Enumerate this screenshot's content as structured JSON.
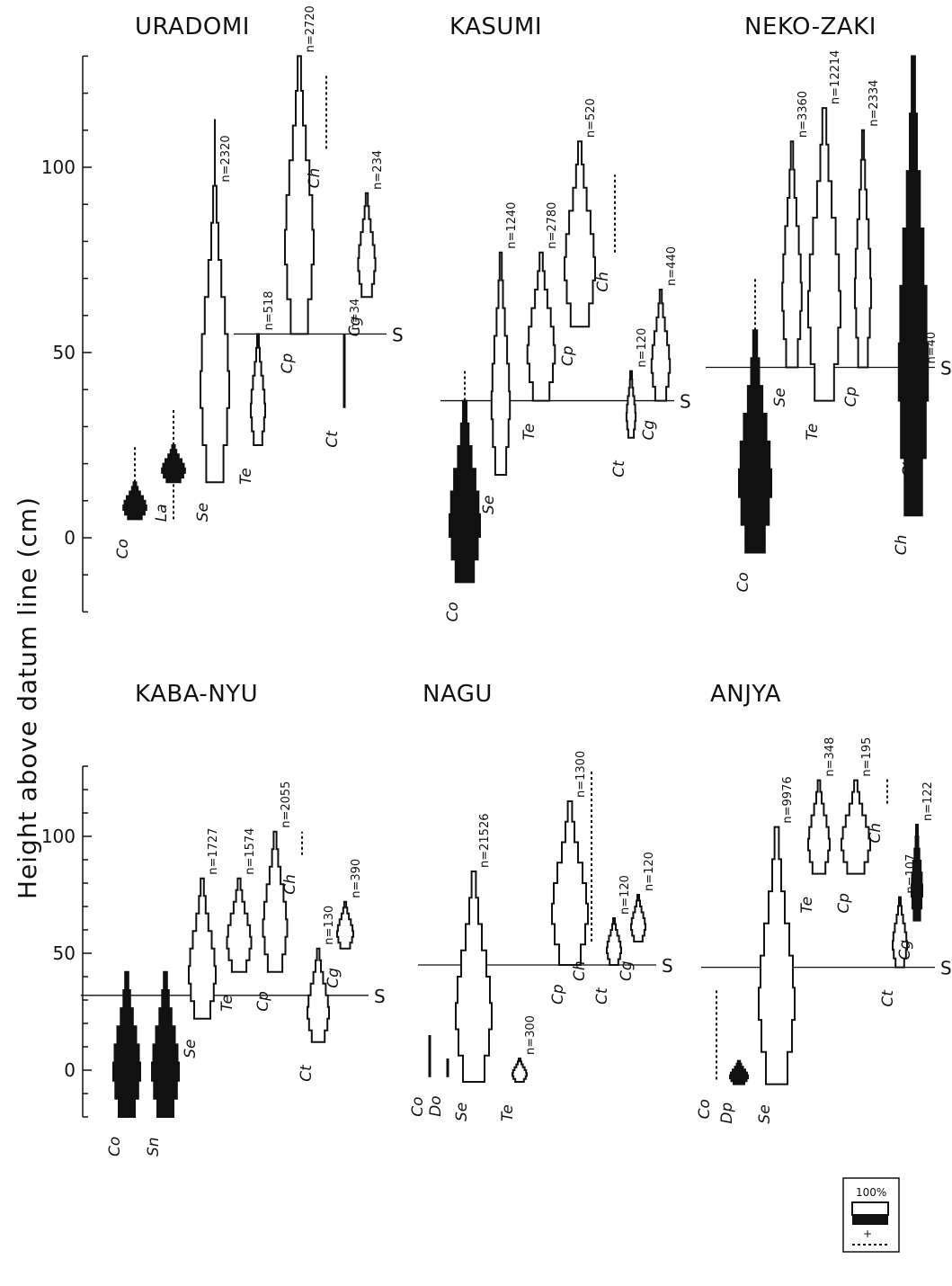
{
  "figure": {
    "ylabel": "Height above datum line (cm)",
    "legend": {
      "label": "100%",
      "plus": "+"
    }
  },
  "chart_data": [
    {
      "type": "kite-diagram",
      "title": "URADOMI",
      "yticks": [
        0,
        50,
        100
      ],
      "ylim": [
        -20,
        130
      ],
      "shoreline": {
        "label": "S",
        "y": 55
      },
      "species": [
        {
          "name": "Co",
          "n": "",
          "fill": "black",
          "top": 15,
          "bottom": 5,
          "max_width_frac": 0.8,
          "dotted_above": [
            15,
            25
          ],
          "dotted_below": []
        },
        {
          "name": "La",
          "n": "",
          "fill": "black",
          "top": 25,
          "bottom": 15,
          "max_width_frac": 0.8,
          "dotted_above": [
            25,
            35
          ],
          "dotted_below": [
            5,
            15
          ]
        },
        {
          "name": "Se",
          "n": "n=2320",
          "fill": "white",
          "top": 95,
          "bottom": 15,
          "max_width_frac": 1.0,
          "line_to": 113
        },
        {
          "name": "Te",
          "n": "n=518",
          "fill": "white",
          "top": 55,
          "bottom": 25,
          "max_width_frac": 0.5
        },
        {
          "name": "Cp",
          "n": "n=2720",
          "fill": "white",
          "top": 130,
          "bottom": 55,
          "max_width_frac": 1.0
        },
        {
          "name": "Ch",
          "n": "",
          "fill": "none",
          "dotted_range": [
            105,
            125
          ]
        },
        {
          "name": "Ct",
          "n": "n=34",
          "fill": "line",
          "top": 55,
          "bottom": 35
        },
        {
          "name": "Cg",
          "n": "n=234",
          "fill": "white",
          "top": 93,
          "bottom": 65,
          "max_width_frac": 0.6
        }
      ]
    },
    {
      "type": "kite-diagram",
      "title": "KASUMI",
      "shoreline": {
        "label": "S",
        "y": 37
      },
      "species": [
        {
          "name": "Co",
          "n": "",
          "fill": "black",
          "top": 37,
          "bottom": -12,
          "max_width_frac": 1.0,
          "dotted_above": [
            37,
            45
          ]
        },
        {
          "name": "Se",
          "n": "n=1240",
          "fill": "white",
          "top": 77,
          "bottom": 17,
          "max_width_frac": 0.6
        },
        {
          "name": "Te",
          "n": "n=2780",
          "fill": "white",
          "top": 77,
          "bottom": 37,
          "max_width_frac": 0.9
        },
        {
          "name": "Cp",
          "n": "n=520",
          "fill": "white",
          "top": 107,
          "bottom": 57,
          "max_width_frac": 1.0
        },
        {
          "name": "Ch",
          "n": "",
          "fill": "none",
          "dotted_range": [
            77,
            98
          ]
        },
        {
          "name": "Ct",
          "n": "n=120",
          "fill": "white",
          "top": 45,
          "bottom": 27,
          "max_width_frac": 0.3
        },
        {
          "name": "Cg",
          "n": "n=440",
          "fill": "white",
          "top": 67,
          "bottom": 37,
          "max_width_frac": 0.6
        }
      ]
    },
    {
      "type": "kite-diagram",
      "title": "NEKO-ZAKI",
      "shoreline": {
        "label": "S",
        "y": 46
      },
      "species": [
        {
          "name": "Co",
          "n": "",
          "fill": "black",
          "top": 56,
          "bottom": -4,
          "max_width_frac": 1.0,
          "dotted_above": [
            56,
            70
          ]
        },
        {
          "name": "Se",
          "n": "n=3360",
          "fill": "white",
          "top": 107,
          "bottom": 46,
          "max_width_frac": 0.6
        },
        {
          "name": "Te",
          "n": "n=12214",
          "fill": "white",
          "top": 116,
          "bottom": 37,
          "max_width_frac": 1.0
        },
        {
          "name": "Cp",
          "n": "n=2334",
          "fill": "white",
          "top": 110,
          "bottom": 46,
          "max_width_frac": 0.5
        },
        {
          "name": "Ch",
          "n": "",
          "fill": "black",
          "top": 130,
          "bottom": 6,
          "max_width_frac": 0.9,
          "dotted_range": [
            55,
            108
          ]
        },
        {
          "name": "Ct",
          "n": "n=40",
          "fill": "line",
          "top": 46,
          "bottom": 27
        }
      ]
    },
    {
      "type": "kite-diagram",
      "title": "KABA-NYU",
      "yticks": [
        0,
        50,
        100
      ],
      "shoreline": {
        "label": "S",
        "y": 32
      },
      "species": [
        {
          "name": "Co",
          "n": "",
          "fill": "black",
          "top": 42,
          "bottom": -20,
          "max_width_frac": 1.0
        },
        {
          "name": "Sn",
          "n": "",
          "fill": "black",
          "top": 42,
          "bottom": -20,
          "max_width_frac": 1.0
        },
        {
          "name": "Se",
          "n": "n=1727",
          "fill": "white",
          "top": 82,
          "bottom": 22,
          "max_width_frac": 1.0
        },
        {
          "name": "Te",
          "n": "n=1574",
          "fill": "white",
          "top": 82,
          "bottom": 42,
          "max_width_frac": 0.9
        },
        {
          "name": "Cp",
          "n": "n=2055",
          "fill": "white",
          "top": 102,
          "bottom": 42,
          "max_width_frac": 0.9
        },
        {
          "name": "Ch",
          "n": "",
          "fill": "none",
          "dotted_range": [
            92,
            102
          ]
        },
        {
          "name": "Ct",
          "n": "n=130",
          "fill": "white",
          "top": 52,
          "bottom": 12,
          "max_width_frac": 0.8
        },
        {
          "name": "Cg",
          "n": "n=390",
          "fill": "white",
          "top": 72,
          "bottom": 52,
          "max_width_frac": 0.6
        }
      ]
    },
    {
      "type": "kite-diagram",
      "title": "NAGU",
      "shoreline": {
        "label": "S",
        "y": 45
      },
      "species": [
        {
          "name": "Co",
          "n": "",
          "fill": "line",
          "top": 15,
          "bottom": -3
        },
        {
          "name": "Do",
          "n": "",
          "fill": "line",
          "top": 5,
          "bottom": -3
        },
        {
          "name": "Se",
          "n": "n=21526",
          "fill": "white",
          "top": 85,
          "bottom": -5,
          "max_width_frac": 1.0
        },
        {
          "name": "Te",
          "n": "n=300",
          "fill": "white",
          "top": 5,
          "bottom": -5,
          "max_width_frac": 0.4
        },
        {
          "name": "Cp",
          "n": "n=1300",
          "fill": "white",
          "top": 115,
          "bottom": 45,
          "max_width_frac": 1.0
        },
        {
          "name": "Ch",
          "n": "",
          "fill": "none",
          "dotted_range": [
            55,
            128
          ]
        },
        {
          "name": "Ct",
          "n": "n=120",
          "fill": "white",
          "top": 65,
          "bottom": 45,
          "max_width_frac": 0.4
        },
        {
          "name": "Cg",
          "n": "n=120",
          "fill": "white",
          "top": 75,
          "bottom": 55,
          "max_width_frac": 0.4
        }
      ]
    },
    {
      "type": "kite-diagram",
      "title": "ANJYA",
      "shoreline": {
        "label": "S",
        "y": 44
      },
      "species": [
        {
          "name": "Co",
          "n": "",
          "fill": "none",
          "dotted_range": [
            -4,
            35
          ]
        },
        {
          "name": "Dp",
          "n": "",
          "fill": "black",
          "top": 4,
          "bottom": -6,
          "max_width_frac": 0.5
        },
        {
          "name": "Se",
          "n": "n=9976",
          "fill": "white",
          "top": 104,
          "bottom": -6,
          "max_width_frac": 1.0
        },
        {
          "name": "Te",
          "n": "n=348",
          "fill": "white",
          "top": 124,
          "bottom": 84,
          "max_width_frac": 0.6
        },
        {
          "name": "Cp",
          "n": "n=195",
          "fill": "white",
          "top": 124,
          "bottom": 84,
          "max_width_frac": 0.8
        },
        {
          "name": "Ch",
          "n": "",
          "fill": "none",
          "dotted_range": [
            114,
            125
          ]
        },
        {
          "name": "Ct",
          "n": "n=107",
          "fill": "white",
          "top": 74,
          "bottom": 44,
          "max_width_frac": 0.4
        },
        {
          "name": "Cg",
          "n": "n=122",
          "fill": "black",
          "top": 105,
          "bottom": 64,
          "max_width_frac": 0.3
        }
      ]
    }
  ]
}
